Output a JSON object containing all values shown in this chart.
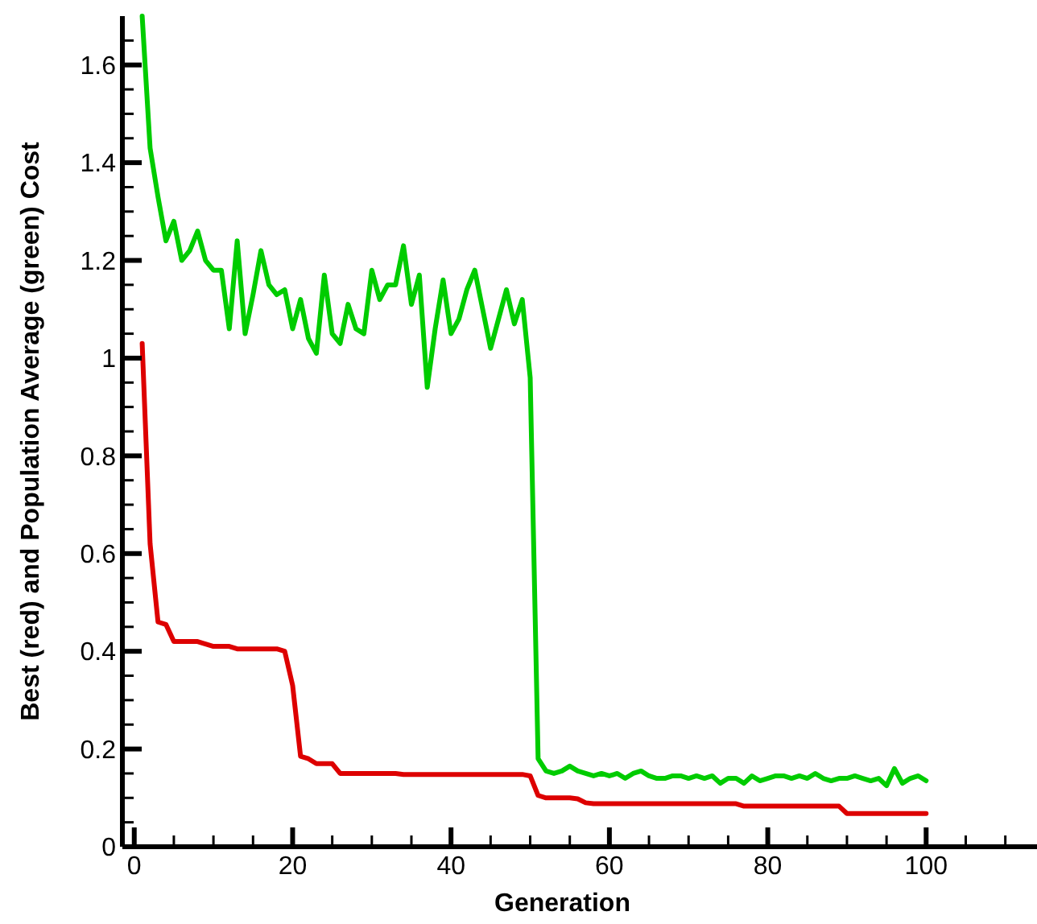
{
  "chart_data": {
    "type": "line",
    "xlabel": "Generation",
    "ylabel": "Best (red) and Population Average (green) Cost",
    "x": [
      1,
      2,
      3,
      4,
      5,
      6,
      7,
      8,
      9,
      10,
      11,
      12,
      13,
      14,
      15,
      16,
      17,
      18,
      19,
      20,
      21,
      22,
      23,
      24,
      25,
      26,
      27,
      28,
      29,
      30,
      31,
      32,
      33,
      34,
      35,
      36,
      37,
      38,
      39,
      40,
      41,
      42,
      43,
      44,
      45,
      46,
      47,
      48,
      49,
      50,
      51,
      52,
      53,
      54,
      55,
      56,
      57,
      58,
      59,
      60,
      61,
      62,
      63,
      64,
      65,
      66,
      67,
      68,
      69,
      70,
      71,
      72,
      73,
      74,
      75,
      76,
      77,
      78,
      79,
      80,
      81,
      82,
      83,
      84,
      85,
      86,
      87,
      88,
      89,
      90,
      91,
      92,
      93,
      94,
      95,
      96,
      97,
      98,
      99,
      100
    ],
    "series": [
      {
        "color": "#00cc00",
        "values": [
          1.7,
          1.43,
          1.33,
          1.24,
          1.28,
          1.2,
          1.22,
          1.26,
          1.2,
          1.18,
          1.18,
          1.06,
          1.24,
          1.05,
          1.13,
          1.22,
          1.15,
          1.13,
          1.14,
          1.06,
          1.12,
          1.04,
          1.01,
          1.17,
          1.05,
          1.03,
          1.11,
          1.06,
          1.05,
          1.18,
          1.12,
          1.15,
          1.15,
          1.23,
          1.11,
          1.17,
          0.94,
          1.06,
          1.16,
          1.05,
          1.08,
          1.14,
          1.18,
          1.1,
          1.02,
          1.08,
          1.14,
          1.07,
          1.12,
          0.96,
          0.18,
          0.155,
          0.15,
          0.155,
          0.165,
          0.155,
          0.15,
          0.145,
          0.15,
          0.145,
          0.15,
          0.14,
          0.15,
          0.155,
          0.145,
          0.14,
          0.14,
          0.145,
          0.145,
          0.14,
          0.145,
          0.14,
          0.145,
          0.13,
          0.14,
          0.14,
          0.13,
          0.145,
          0.135,
          0.14,
          0.145,
          0.145,
          0.14,
          0.145,
          0.14,
          0.15,
          0.14,
          0.135,
          0.14,
          0.14,
          0.145,
          0.14,
          0.135,
          0.14,
          0.125,
          0.16,
          0.13,
          0.14,
          0.145,
          0.135
        ]
      },
      {
        "color": "#dd0000",
        "values": [
          1.03,
          0.62,
          0.46,
          0.455,
          0.42,
          0.42,
          0.42,
          0.42,
          0.415,
          0.41,
          0.41,
          0.41,
          0.405,
          0.405,
          0.405,
          0.405,
          0.405,
          0.405,
          0.4,
          0.33,
          0.185,
          0.18,
          0.17,
          0.17,
          0.17,
          0.15,
          0.15,
          0.15,
          0.15,
          0.15,
          0.15,
          0.15,
          0.15,
          0.148,
          0.148,
          0.148,
          0.148,
          0.148,
          0.148,
          0.148,
          0.148,
          0.148,
          0.148,
          0.148,
          0.148,
          0.148,
          0.148,
          0.148,
          0.148,
          0.145,
          0.105,
          0.1,
          0.1,
          0.1,
          0.1,
          0.098,
          0.09,
          0.088,
          0.088,
          0.088,
          0.088,
          0.088,
          0.088,
          0.088,
          0.088,
          0.088,
          0.088,
          0.088,
          0.088,
          0.088,
          0.088,
          0.088,
          0.088,
          0.088,
          0.088,
          0.088,
          0.083,
          0.083,
          0.083,
          0.083,
          0.083,
          0.083,
          0.083,
          0.083,
          0.083,
          0.083,
          0.083,
          0.083,
          0.083,
          0.068,
          0.068,
          0.068,
          0.068,
          0.068,
          0.068,
          0.068,
          0.068,
          0.068,
          0.068,
          0.068
        ]
      }
    ],
    "xlim": [
      -1.5,
      114
    ],
    "ylim": [
      0,
      1.7
    ],
    "xticks": [
      0,
      {
        "value": 5,
        "label": null
      },
      {
        "value": 10,
        "label": null
      },
      {
        "value": 15,
        "label": null
      },
      20,
      {
        "value": 25,
        "label": null
      },
      {
        "value": 30,
        "label": null
      },
      {
        "value": 35,
        "label": null
      },
      40,
      {
        "value": 45,
        "label": null
      },
      {
        "value": 50,
        "label": null
      },
      {
        "value": 55,
        "label": null
      },
      60,
      {
        "value": 65,
        "label": null
      },
      {
        "value": 70,
        "label": null
      },
      {
        "value": 75,
        "label": null
      },
      80,
      {
        "value": 85,
        "label": null
      },
      {
        "value": 90,
        "label": null
      },
      {
        "value": 95,
        "label": null
      },
      100,
      {
        "value": 105,
        "label": null
      },
      {
        "value": 110,
        "label": null
      }
    ],
    "yticks": [
      0,
      {
        "value": 0.05,
        "label": null
      },
      {
        "value": 0.1,
        "label": null
      },
      {
        "value": 0.15,
        "label": null
      },
      0.2,
      {
        "value": 0.25,
        "label": null
      },
      {
        "value": 0.3,
        "label": null
      },
      {
        "value": 0.35,
        "label": null
      },
      0.4,
      {
        "value": 0.45,
        "label": null
      },
      {
        "value": 0.5,
        "label": null
      },
      {
        "value": 0.55,
        "label": null
      },
      0.6,
      {
        "value": 0.65,
        "label": null
      },
      {
        "value": 0.7,
        "label": null
      },
      {
        "value": 0.75,
        "label": null
      },
      0.8,
      {
        "value": 0.85,
        "label": null
      },
      {
        "value": 0.9,
        "label": null
      },
      {
        "value": 0.95,
        "label": null
      },
      1,
      {
        "value": 1.05,
        "label": null
      },
      {
        "value": 1.1,
        "label": null
      },
      {
        "value": 1.15,
        "label": null
      },
      1.2,
      {
        "value": 1.25,
        "label": null
      },
      {
        "value": 1.3,
        "label": null
      },
      {
        "value": 1.35,
        "label": null
      },
      1.4,
      {
        "value": 1.45,
        "label": null
      },
      {
        "value": 1.5,
        "label": null
      },
      {
        "value": 1.55,
        "label": null
      },
      1.6,
      {
        "value": 1.65,
        "label": null
      }
    ],
    "grid": false,
    "marker": "none",
    "line_style": "solid"
  }
}
